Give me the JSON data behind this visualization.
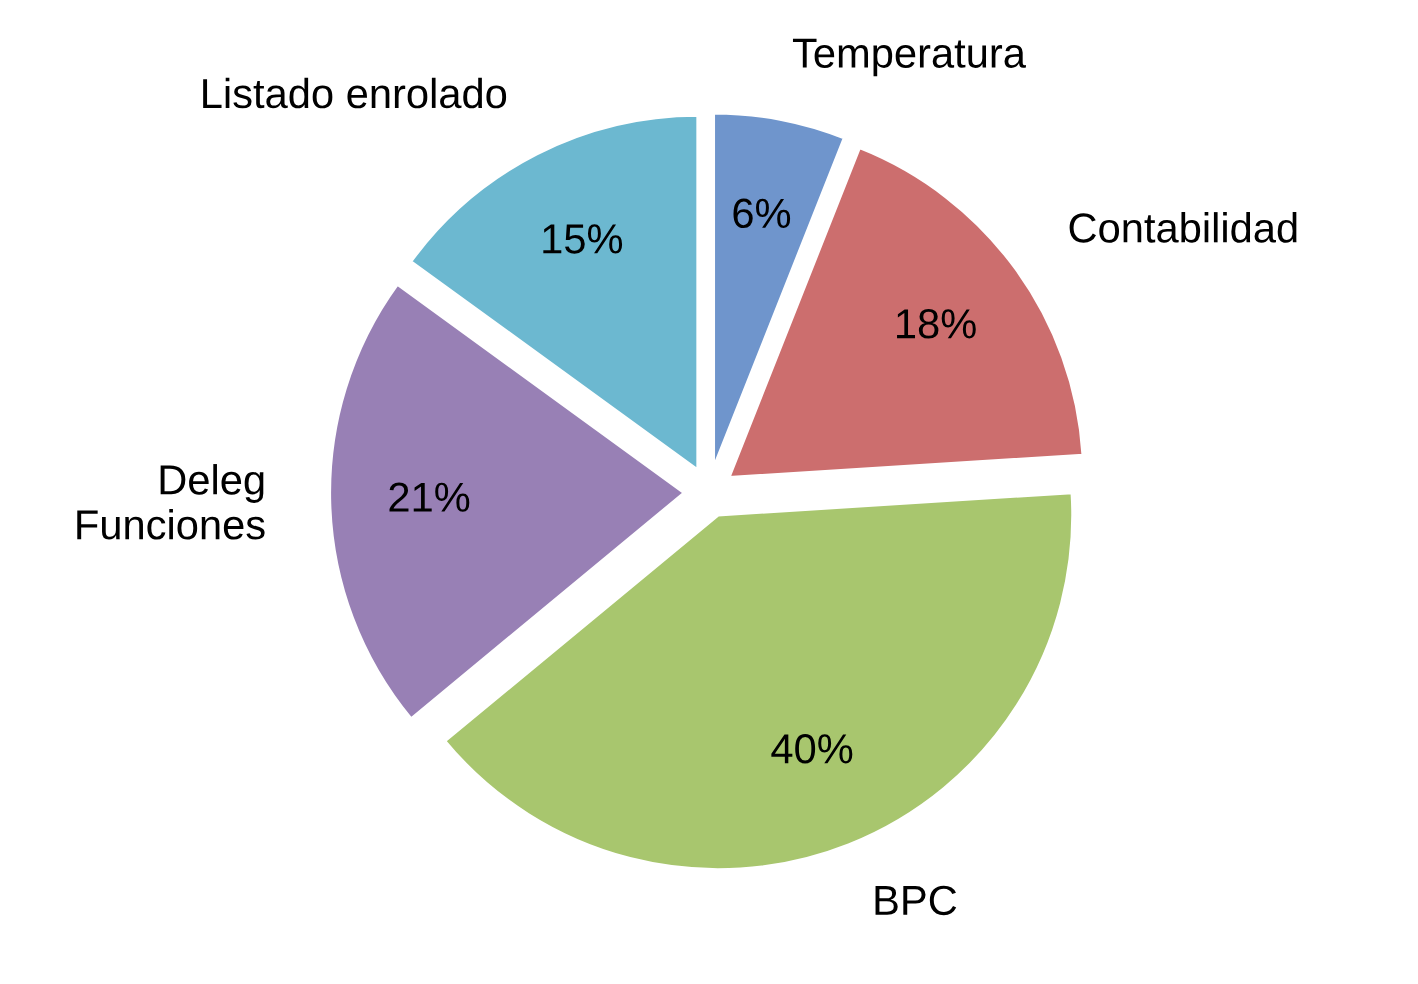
{
  "chart_data": {
    "type": "pie",
    "categories": [
      "Temperatura",
      "Contabilidad",
      "BPC",
      "Deleg\nFunciones",
      "Listado enrolado"
    ],
    "values": [
      6,
      18,
      40,
      21,
      15
    ],
    "value_labels": [
      "6%",
      "18%",
      "40%",
      "21%",
      "15%"
    ],
    "colors": [
      "#6f95cc",
      "#cc6e6e",
      "#a8c66e",
      "#9880b5",
      "#6cb8d0"
    ],
    "legend": false
  }
}
